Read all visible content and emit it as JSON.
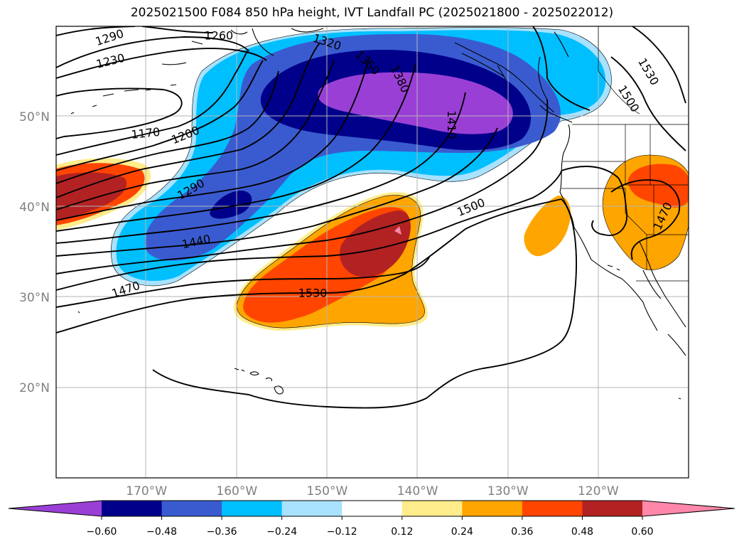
{
  "title": "2025021500 F084 850 hPa height, IVT Landfall PC (2025021800 - 2025022012)",
  "map": {
    "lon_range": [
      -180,
      -110
    ],
    "lat_range": [
      10,
      60
    ],
    "lat_ticks": [
      {
        "value": 50,
        "label": "50°N"
      },
      {
        "value": 40,
        "label": "40°N"
      },
      {
        "value": 30,
        "label": "30°N"
      },
      {
        "value": 20,
        "label": "20°N"
      }
    ],
    "lon_ticks": [
      {
        "value": -170,
        "label": "170°W"
      },
      {
        "value": -160,
        "label": "160°W"
      },
      {
        "value": -150,
        "label": "150°W"
      },
      {
        "value": -140,
        "label": "140°W"
      },
      {
        "value": -130,
        "label": "130°W"
      },
      {
        "value": -120,
        "label": "120°W"
      }
    ],
    "contour_labels": [
      {
        "text": "1290",
        "lon": -174.1,
        "lat": 58.8,
        "angle": -18
      },
      {
        "text": "1260",
        "lon": -162.0,
        "lat": 59.0,
        "angle": 0
      },
      {
        "text": "1230",
        "lon": -174.0,
        "lat": 56.2,
        "angle": -14
      },
      {
        "text": "1320",
        "lon": -150.0,
        "lat": 58.3,
        "angle": 18
      },
      {
        "text": "1350",
        "lon": -145.5,
        "lat": 56.0,
        "angle": 45
      },
      {
        "text": "1380",
        "lon": -141.9,
        "lat": 54.2,
        "angle": 65
      },
      {
        "text": "1410",
        "lon": -136.2,
        "lat": 49.1,
        "angle": 90
      },
      {
        "text": "1530",
        "lon": -114.4,
        "lat": 55.0,
        "angle": 60
      },
      {
        "text": "1500",
        "lon": -116.6,
        "lat": 52.0,
        "angle": 58
      },
      {
        "text": "1170",
        "lon": -170.1,
        "lat": 48.2,
        "angle": -6
      },
      {
        "text": "1200",
        "lon": -165.7,
        "lat": 48.0,
        "angle": -22
      },
      {
        "text": "1290",
        "lon": -165.1,
        "lat": 42.0,
        "angle": -30
      },
      {
        "text": "1500",
        "lon": -134.1,
        "lat": 40.0,
        "angle": -22
      },
      {
        "text": "1440",
        "lon": -164.5,
        "lat": 36.2,
        "angle": -12
      },
      {
        "text": "1470",
        "lon": -172.3,
        "lat": 30.9,
        "angle": -18
      },
      {
        "text": "1530",
        "lon": -151.6,
        "lat": 30.5,
        "angle": 0
      },
      {
        "text": "1470",
        "lon": -112.9,
        "lat": 39.0,
        "angle": -65
      }
    ]
  },
  "colorbar": {
    "colors": [
      "#9a3fd6",
      "#00008b",
      "#3a5bd0",
      "#00bfff",
      "#a8e2ff",
      "#ffffff",
      "#ffec8b",
      "#ffa500",
      "#ff4500",
      "#b22222",
      "#ff88aa"
    ],
    "ticks": [
      "−0.60",
      "−0.48",
      "−0.36",
      "−0.24",
      "−0.12",
      "0.12",
      "0.24",
      "0.36",
      "0.48",
      "0.60"
    ]
  }
}
